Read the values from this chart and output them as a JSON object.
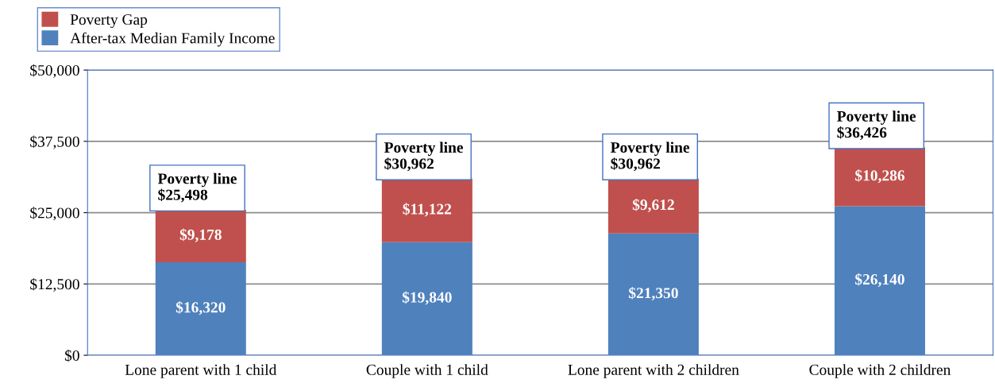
{
  "chart_data": {
    "type": "bar",
    "stacked": true,
    "categories": [
      "Lone parent with 1 child",
      "Couple with 1 child",
      "Lone parent with 2 children",
      "Couple with 2 children"
    ],
    "series": [
      {
        "name": "After-tax Median Family Income",
        "color": "#4f81bd",
        "values": [
          16320,
          19840,
          21350,
          26140
        ],
        "value_labels": [
          "$16,320",
          "$19,840",
          "$21,350",
          "$26,140"
        ]
      },
      {
        "name": "Poverty Gap",
        "color": "#c0504d",
        "values": [
          9178,
          11122,
          9612,
          10286
        ],
        "value_labels": [
          "$9,178",
          "$11,122",
          "$9,612",
          "$10,286"
        ]
      }
    ],
    "ylim": [
      0,
      50000
    ],
    "yticks": [
      {
        "value": 0,
        "label": "$0"
      },
      {
        "value": 12500,
        "label": "$12,500"
      },
      {
        "value": 25000,
        "label": "$25,000"
      },
      {
        "value": 37500,
        "label": "$37,500"
      },
      {
        "value": 50000,
        "label": "$50,000"
      }
    ],
    "grid": "y",
    "legend": "top left",
    "annotations": [
      {
        "text": "Poverty line\n$25,498",
        "x": "Lone parent with 1 child",
        "y": 25498
      },
      {
        "text": "Poverty line\n$30,962",
        "x": "Couple with 1 child",
        "y": 30962
      },
      {
        "text": "Poverty line\n$30,962",
        "x": "Lone parent with 2 children",
        "y": 30962
      },
      {
        "text": "Poverty line\n$36,426",
        "x": "Couple with 2 children",
        "y": 36426
      }
    ]
  }
}
